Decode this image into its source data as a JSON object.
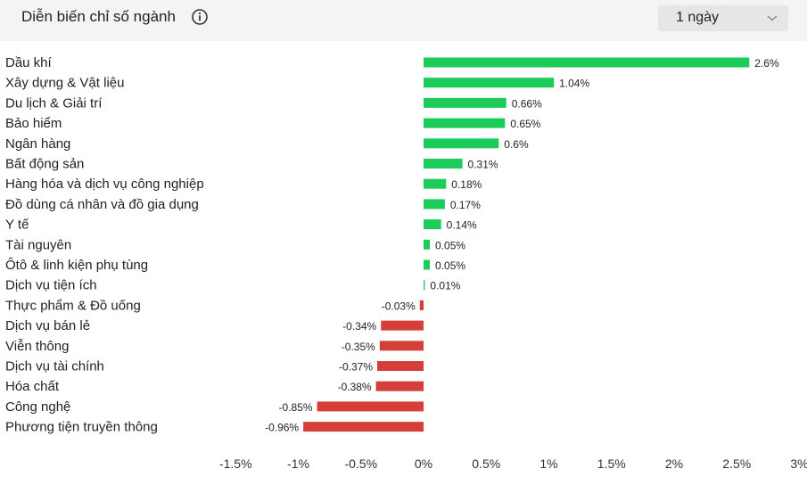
{
  "header": {
    "title": "Diễn biến chỉ số ngành",
    "info_icon": "info-icon",
    "dropdown_value": "1 ngày",
    "dropdown_icon": "chevron-down-icon"
  },
  "colors": {
    "positive": "#1ccc5b",
    "negative": "#d43f3a",
    "header_bg": "#f4f4f5",
    "dropdown_bg": "#e6e6e8"
  },
  "chart_data": {
    "type": "bar",
    "orientation": "horizontal",
    "categories": [
      "Dầu khí",
      "Xây dựng & Vật liệu",
      "Du lịch & Giải trí",
      "Bảo hiểm",
      "Ngân hàng",
      "Bất động sản",
      "Hàng hóa và dịch vụ công nghiệp",
      "Đồ dùng cá nhân và đồ gia dụng",
      "Y tế",
      "Tài nguyên",
      "Ôtô & linh kiện phụ tùng",
      "Dịch vụ tiện ích",
      "Thực phẩm & Đồ uống",
      "Dịch vụ bán lẻ",
      "Viễn thông",
      "Dịch vụ tài chính",
      "Hóa chất",
      "Công nghệ",
      "Phương tiện truyền thông"
    ],
    "values": [
      2.6,
      1.04,
      0.66,
      0.65,
      0.6,
      0.31,
      0.18,
      0.17,
      0.14,
      0.05,
      0.05,
      0.01,
      -0.03,
      -0.34,
      -0.35,
      -0.37,
      -0.38,
      -0.85,
      -0.96
    ],
    "value_labels": [
      "2.6%",
      "1.04%",
      "0.66%",
      "0.65%",
      "0.6%",
      "0.31%",
      "0.18%",
      "0.17%",
      "0.14%",
      "0.05%",
      "0.05%",
      "0.01%",
      "-0.03%",
      "-0.34%",
      "-0.35%",
      "-0.37%",
      "-0.38%",
      "-0.85%",
      "-0.96%"
    ],
    "x_ticks": [
      -1.5,
      -1,
      -0.5,
      0,
      0.5,
      1,
      1.5,
      2,
      2.5,
      3
    ],
    "x_tick_labels": [
      "-1.5%",
      "-1%",
      "-0.5%",
      "0%",
      "0.5%",
      "1%",
      "1.5%",
      "2%",
      "2.5%",
      "3%"
    ],
    "xlim": [
      -1.5,
      3
    ],
    "grid": false
  }
}
